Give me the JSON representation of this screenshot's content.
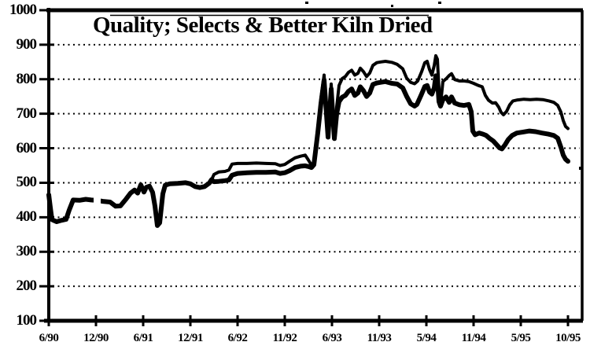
{
  "colors": {
    "ink": "#000000",
    "background": "#ffffff"
  },
  "chart_data": {
    "type": "line",
    "title": "Quality; Selects & Better Kiln Dried",
    "xlabel": "",
    "ylabel": "",
    "ylim": [
      100,
      1000
    ],
    "y_ticks": [
      1000,
      900,
      800,
      700,
      600,
      500,
      400,
      300,
      200,
      100
    ],
    "x_tick_labels": [
      "6/90",
      "12/90",
      "6/91",
      "12/91",
      "6/92",
      "11/92",
      "6/93",
      "11/93",
      "5/94",
      "11/94",
      "5/95",
      "10/95"
    ],
    "grid": "horizontal dotted lines at every 100",
    "legend": "none",
    "style": "black-and-white scanned print, two thick black price lines that overlap as one line until early 1992",
    "series": [
      {
        "name": "upper",
        "points": [
          [
            0.0,
            465
          ],
          [
            0.033,
            428
          ],
          [
            0.067,
            393
          ],
          [
            0.167,
            387
          ],
          [
            0.267,
            391
          ],
          [
            0.367,
            394
          ],
          [
            0.433,
            421
          ],
          [
            0.517,
            450
          ],
          [
            0.65,
            449
          ],
          [
            0.783,
            452
          ],
          [
            0.9,
            450
          ],
          [
            1.0,
            449
          ],
          [
            1.15,
            446
          ],
          [
            1.3,
            444
          ],
          [
            1.417,
            432
          ],
          [
            1.517,
            433
          ],
          [
            1.633,
            452
          ],
          [
            1.733,
            470
          ],
          [
            1.817,
            479
          ],
          [
            1.883,
            470
          ],
          [
            1.95,
            494
          ],
          [
            2.017,
            473
          ],
          [
            2.067,
            487
          ],
          [
            2.133,
            490
          ],
          [
            2.2,
            472
          ],
          [
            2.25,
            432
          ],
          [
            2.3,
            376
          ],
          [
            2.35,
            384
          ],
          [
            2.417,
            468
          ],
          [
            2.467,
            493
          ],
          [
            2.567,
            497
          ],
          [
            2.733,
            498
          ],
          [
            2.9,
            500
          ],
          [
            3.0,
            497
          ],
          [
            3.1,
            489
          ],
          [
            3.2,
            486
          ],
          [
            3.3,
            489
          ],
          [
            3.4,
            499
          ],
          [
            3.45,
            509
          ],
          [
            3.5,
            524
          ],
          [
            3.6,
            531
          ],
          [
            3.733,
            533
          ],
          [
            3.817,
            537
          ],
          [
            3.883,
            554
          ],
          [
            4.0,
            556
          ],
          [
            4.2,
            556
          ],
          [
            4.4,
            557
          ],
          [
            4.6,
            556
          ],
          [
            4.8,
            555
          ],
          [
            4.9,
            550
          ],
          [
            5.0,
            553
          ],
          [
            5.1,
            562
          ],
          [
            5.217,
            572
          ],
          [
            5.333,
            577
          ],
          [
            5.433,
            580
          ],
          [
            5.5,
            566
          ],
          [
            5.567,
            551
          ],
          [
            5.617,
            560
          ],
          [
            5.7,
            660
          ],
          [
            5.767,
            745
          ],
          [
            5.833,
            812
          ],
          [
            5.917,
            642
          ],
          [
            5.983,
            786
          ],
          [
            6.05,
            636
          ],
          [
            6.1,
            720
          ],
          [
            6.15,
            782
          ],
          [
            6.217,
            802
          ],
          [
            6.283,
            808
          ],
          [
            6.35,
            820
          ],
          [
            6.417,
            826
          ],
          [
            6.483,
            812
          ],
          [
            6.55,
            817
          ],
          [
            6.6,
            832
          ],
          [
            6.667,
            822
          ],
          [
            6.733,
            808
          ],
          [
            6.8,
            818
          ],
          [
            6.867,
            840
          ],
          [
            6.95,
            848
          ],
          [
            7.033,
            850
          ],
          [
            7.133,
            852
          ],
          [
            7.267,
            849
          ],
          [
            7.383,
            843
          ],
          [
            7.5,
            830
          ],
          [
            7.583,
            803
          ],
          [
            7.667,
            791
          ],
          [
            7.75,
            787
          ],
          [
            7.817,
            795
          ],
          [
            7.9,
            822
          ],
          [
            7.967,
            848
          ],
          [
            8.017,
            852
          ],
          [
            8.067,
            828
          ],
          [
            8.117,
            812
          ],
          [
            8.167,
            840
          ],
          [
            8.2,
            868
          ],
          [
            8.233,
            858
          ],
          [
            8.267,
            770
          ],
          [
            8.3,
            726
          ],
          [
            8.35,
            793
          ],
          [
            8.417,
            801
          ],
          [
            8.483,
            811
          ],
          [
            8.533,
            816
          ],
          [
            8.6,
            799
          ],
          [
            8.7,
            795
          ],
          [
            8.8,
            795
          ],
          [
            8.9,
            793
          ],
          [
            9.0,
            788
          ],
          [
            9.1,
            782
          ],
          [
            9.183,
            778
          ],
          [
            9.25,
            753
          ],
          [
            9.317,
            739
          ],
          [
            9.4,
            731
          ],
          [
            9.467,
            732
          ],
          [
            9.533,
            719
          ],
          [
            9.583,
            704
          ],
          [
            9.633,
            697
          ],
          [
            9.7,
            707
          ],
          [
            9.767,
            726
          ],
          [
            9.833,
            737
          ],
          [
            9.933,
            740
          ],
          [
            10.067,
            742
          ],
          [
            10.2,
            741
          ],
          [
            10.333,
            742
          ],
          [
            10.467,
            741
          ],
          [
            10.6,
            737
          ],
          [
            10.7,
            733
          ],
          [
            10.783,
            724
          ],
          [
            10.85,
            705
          ],
          [
            10.9,
            680
          ],
          [
            10.95,
            663
          ],
          [
            11.0,
            657
          ]
        ]
      },
      {
        "name": "lower",
        "points": [
          [
            0.0,
            465
          ],
          [
            0.033,
            428
          ],
          [
            0.067,
            393
          ],
          [
            0.167,
            387
          ],
          [
            0.267,
            391
          ],
          [
            0.367,
            394
          ],
          [
            0.433,
            421
          ],
          [
            0.517,
            450
          ],
          [
            0.65,
            449
          ],
          [
            0.783,
            452
          ],
          [
            0.9,
            450
          ],
          [
            1.0,
            449
          ],
          [
            1.15,
            446
          ],
          [
            1.3,
            444
          ],
          [
            1.417,
            432
          ],
          [
            1.517,
            433
          ],
          [
            1.633,
            452
          ],
          [
            1.733,
            470
          ],
          [
            1.817,
            479
          ],
          [
            1.883,
            470
          ],
          [
            1.95,
            494
          ],
          [
            2.017,
            473
          ],
          [
            2.067,
            487
          ],
          [
            2.133,
            490
          ],
          [
            2.2,
            472
          ],
          [
            2.25,
            432
          ],
          [
            2.3,
            376
          ],
          [
            2.35,
            384
          ],
          [
            2.417,
            468
          ],
          [
            2.467,
            493
          ],
          [
            2.567,
            497
          ],
          [
            2.733,
            498
          ],
          [
            2.9,
            500
          ],
          [
            3.0,
            497
          ],
          [
            3.1,
            489
          ],
          [
            3.2,
            486
          ],
          [
            3.3,
            489
          ],
          [
            3.4,
            499
          ],
          [
            3.45,
            509
          ],
          [
            3.5,
            503
          ],
          [
            3.6,
            504
          ],
          [
            3.733,
            506
          ],
          [
            3.817,
            508
          ],
          [
            3.883,
            522
          ],
          [
            4.0,
            527
          ],
          [
            4.2,
            529
          ],
          [
            4.4,
            530
          ],
          [
            4.6,
            530
          ],
          [
            4.8,
            531
          ],
          [
            4.9,
            527
          ],
          [
            5.0,
            529
          ],
          [
            5.1,
            535
          ],
          [
            5.217,
            544
          ],
          [
            5.333,
            548
          ],
          [
            5.433,
            549
          ],
          [
            5.5,
            547
          ],
          [
            5.567,
            544
          ],
          [
            5.617,
            552
          ],
          [
            5.7,
            645
          ],
          [
            5.767,
            730
          ],
          [
            5.833,
            798
          ],
          [
            5.917,
            632
          ],
          [
            5.983,
            772
          ],
          [
            6.05,
            628
          ],
          [
            6.1,
            700
          ],
          [
            6.15,
            735
          ],
          [
            6.217,
            748
          ],
          [
            6.283,
            753
          ],
          [
            6.35,
            765
          ],
          [
            6.417,
            772
          ],
          [
            6.483,
            753
          ],
          [
            6.55,
            760
          ],
          [
            6.6,
            778
          ],
          [
            6.667,
            767
          ],
          [
            6.733,
            750
          ],
          [
            6.8,
            760
          ],
          [
            6.867,
            785
          ],
          [
            6.95,
            789
          ],
          [
            7.033,
            791
          ],
          [
            7.133,
            793
          ],
          [
            7.267,
            788
          ],
          [
            7.383,
            786
          ],
          [
            7.5,
            775
          ],
          [
            7.583,
            750
          ],
          [
            7.667,
            729
          ],
          [
            7.75,
            722
          ],
          [
            7.8,
            727
          ],
          [
            7.883,
            752
          ],
          [
            7.967,
            779
          ],
          [
            8.017,
            782
          ],
          [
            8.067,
            763
          ],
          [
            8.117,
            757
          ],
          [
            8.167,
            775
          ],
          [
            8.2,
            810
          ],
          [
            8.233,
            800
          ],
          [
            8.267,
            735
          ],
          [
            8.3,
            722
          ],
          [
            8.35,
            741
          ],
          [
            8.417,
            749
          ],
          [
            8.483,
            733
          ],
          [
            8.533,
            749
          ],
          [
            8.6,
            731
          ],
          [
            8.7,
            726
          ],
          [
            8.8,
            724
          ],
          [
            8.9,
            727
          ],
          [
            8.95,
            706
          ],
          [
            8.983,
            650
          ],
          [
            9.033,
            639
          ],
          [
            9.117,
            644
          ],
          [
            9.2,
            641
          ],
          [
            9.267,
            637
          ],
          [
            9.333,
            629
          ],
          [
            9.417,
            621
          ],
          [
            9.483,
            611
          ],
          [
            9.55,
            601
          ],
          [
            9.6,
            598
          ],
          [
            9.667,
            610
          ],
          [
            9.733,
            625
          ],
          [
            9.817,
            637
          ],
          [
            9.917,
            644
          ],
          [
            10.05,
            647
          ],
          [
            10.183,
            650
          ],
          [
            10.317,
            648
          ],
          [
            10.45,
            644
          ],
          [
            10.583,
            641
          ],
          [
            10.7,
            637
          ],
          [
            10.783,
            629
          ],
          [
            10.85,
            603
          ],
          [
            10.9,
            580
          ],
          [
            10.95,
            568
          ],
          [
            11.0,
            562
          ]
        ]
      }
    ]
  }
}
